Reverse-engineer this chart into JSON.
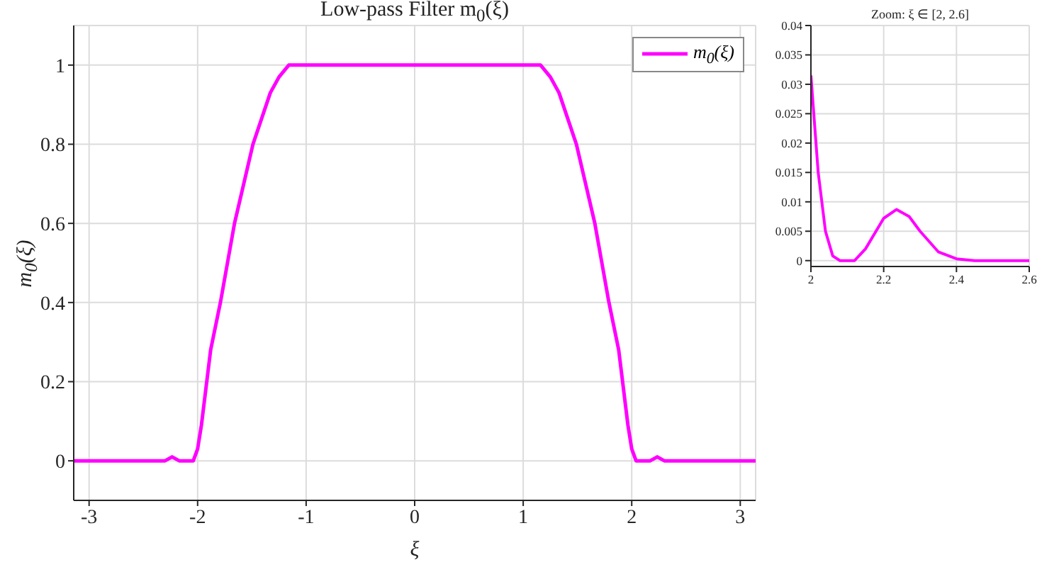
{
  "chart_data": [
    {
      "type": "line",
      "title": "Low-pass Filter m$_{0}$(ξ)",
      "xlabel": "ξ",
      "ylabel": "m$_{0}$(ξ)",
      "x": [
        -3.1416,
        -2.6,
        -2.4,
        -2.3,
        -2.235,
        -2.17,
        -2.12,
        -2.08,
        -2.04,
        -2,
        -1.965,
        -1.88,
        -1.79,
        -1.66,
        -1.49,
        -1.33,
        -1.25,
        -1.16,
        0,
        1.16,
        1.25,
        1.33,
        1.49,
        1.66,
        1.79,
        1.88,
        1.965,
        2,
        2.04,
        2.08,
        2.12,
        2.17,
        2.235,
        2.3,
        2.4,
        2.6,
        3.1416
      ],
      "series": [
        {
          "name": "m$_{0}$(ξ)",
          "color": "#ff00ff",
          "values": [
            0,
            0,
            0,
            0,
            0.01,
            0,
            0,
            0,
            0,
            0.03,
            0.09,
            0.28,
            0.4,
            0.6,
            0.8,
            0.93,
            0.97,
            1,
            1,
            1,
            0.97,
            0.93,
            0.8,
            0.6,
            0.4,
            0.28,
            0.09,
            0.03,
            0,
            0,
            0,
            0,
            0.01,
            0,
            0,
            0,
            0
          ]
        }
      ],
      "xlim": [
        -3.1416,
        3.1416
      ],
      "xticks": [
        -3,
        -2,
        -1,
        0,
        1,
        2,
        3
      ],
      "ylim": [
        -0.1,
        1.1
      ],
      "yticks": [
        0,
        0.2,
        0.4,
        0.6,
        0.8,
        1
      ],
      "grid": true,
      "legend": "top right",
      "marker": "none"
    },
    {
      "type": "line",
      "title": "Zoom: ξ ∈ [2, 2.6]",
      "x": [
        2,
        2.02,
        2.04,
        2.06,
        2.08,
        2.12,
        2.15,
        2.2,
        2.235,
        2.27,
        2.3,
        2.35,
        2.4,
        2.45,
        2.6
      ],
      "series": [
        {
          "color": "#ff00ff",
          "values": [
            0.0315,
            0.015,
            0.005,
            0.0008,
            0,
            0,
            0.002,
            0.0072,
            0.0087,
            0.0075,
            0.005,
            0.0015,
            0.0003,
            0,
            0
          ]
        }
      ],
      "xlim": [
        2,
        2.6
      ],
      "xticks": [
        2,
        2.2,
        2.4,
        2.6
      ],
      "ylim": [
        -0.001,
        0.04
      ],
      "yticks": [
        0,
        0.005,
        0.01,
        0.015,
        0.02,
        0.025,
        0.03,
        0.035,
        0.04
      ],
      "grid": true,
      "marker": "none"
    }
  ]
}
